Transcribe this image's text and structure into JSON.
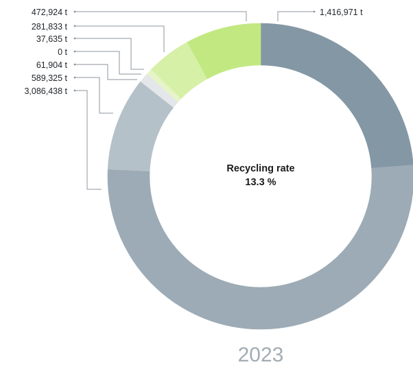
{
  "chart_data": {
    "type": "pie",
    "style": "donut",
    "unit": "t",
    "center_title": "Recycling rate",
    "center_value": "13.3 %",
    "year": "2023",
    "slices": [
      {
        "label": "1,416,971 t",
        "value": 1416971,
        "color": "#8497a4"
      },
      {
        "label": "3,086,438 t",
        "value": 3086438,
        "color": "#9cabb5"
      },
      {
        "label": "589,325 t",
        "value": 589325,
        "color": "#b5c1c8"
      },
      {
        "label": "61,904 t",
        "value": 61904,
        "color": "#e3e7ea"
      },
      {
        "label": "0 t",
        "value": 0,
        "color": "#eef6dc"
      },
      {
        "label": "37,635 t",
        "value": 37635,
        "color": "#e6f4c8"
      },
      {
        "label": "281,833 t",
        "value": 281833,
        "color": "#d6f0a8"
      },
      {
        "label": "472,924 t",
        "value": 472924,
        "color": "#c2e882"
      }
    ]
  }
}
